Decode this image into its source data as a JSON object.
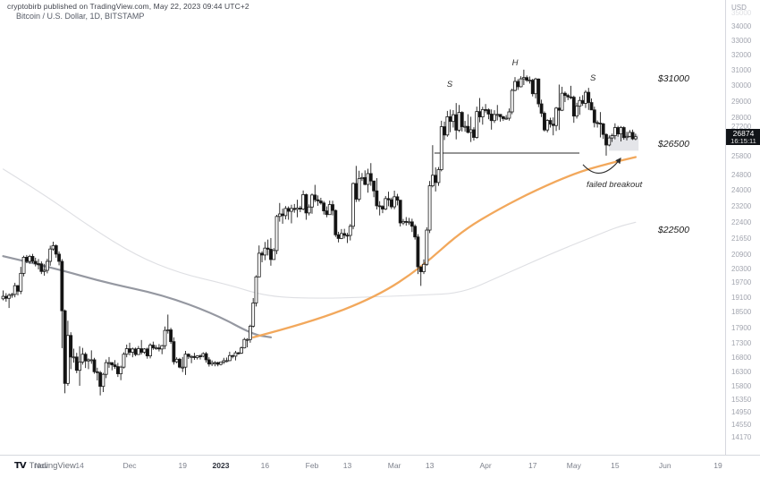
{
  "meta": {
    "publish_line": "cryptobirb published on TradingView.com, May 22, 2023 09:44 UTC+2",
    "title": "Bitcoin / U.S. Dollar, 1D, BITSTAMP",
    "brand": "TradingView",
    "brand_glyph": "TV"
  },
  "price_scale": {
    "unit": "USD",
    "price_box": {
      "price": "26874",
      "countdown": "16:15:11"
    }
  },
  "colors": {
    "up": "#ffffff",
    "down": "#131313",
    "bar_outline": "#1c1c1c",
    "ma_fast": "#f2a85c",
    "ma_slow": "#9598a1",
    "ma_faint": "#dedfe3",
    "annotation": "#2e2e2e",
    "highlight": "#d2d4da",
    "neckline": "#2b2b2b"
  },
  "chart_data": {
    "type": "candlestick",
    "symbol": "Bitcoin / U.S. Dollar",
    "interval": "1D",
    "exchange": "BITSTAMP",
    "unit": "USD (thousands)",
    "scale": "log",
    "start_date": "2022-10-19",
    "end_date": "2023-05-22",
    "last_close": 26.87,
    "y_ticks": [
      {
        "v": 35000,
        "dim": true
      },
      {
        "v": 34000
      },
      {
        "v": 33000
      },
      {
        "v": 32000
      },
      {
        "v": 31000
      },
      {
        "v": 30000
      },
      {
        "v": 29000
      },
      {
        "v": 28000
      },
      {
        "v": 27200,
        "dy": -5
      },
      {
        "v": 25800
      },
      {
        "v": 24800
      },
      {
        "v": 24000
      },
      {
        "v": 23200
      },
      {
        "v": 22400
      },
      {
        "v": 21650
      },
      {
        "v": 20900
      },
      {
        "v": 20300
      },
      {
        "v": 19700
      },
      {
        "v": 19100
      },
      {
        "v": 18500
      },
      {
        "v": 17900
      },
      {
        "v": 17300
      },
      {
        "v": 16800
      },
      {
        "v": 16300
      },
      {
        "v": 15800
      },
      {
        "v": 15350
      },
      {
        "v": 14950
      },
      {
        "v": 14550
      },
      {
        "v": 14170
      }
    ],
    "x_ticks": [
      {
        "t": "Nov",
        "d": -61
      },
      {
        "t": "14",
        "d": -48
      },
      {
        "t": "Dec",
        "d": -31
      },
      {
        "t": "19",
        "d": -13
      },
      {
        "t": "2023",
        "d": 0,
        "bold": true
      },
      {
        "t": "16",
        "d": 15
      },
      {
        "t": "Feb",
        "d": 31
      },
      {
        "t": "13",
        "d": 43
      },
      {
        "t": "Mar",
        "d": 59
      },
      {
        "t": "13",
        "d": 71
      },
      {
        "t": "Apr",
        "d": 90
      },
      {
        "t": "17",
        "d": 106
      },
      {
        "t": "May",
        "d": 120
      },
      {
        "t": "15",
        "d": 134
      },
      {
        "t": "Jun",
        "d": 151
      },
      {
        "t": "19",
        "d": 169
      }
    ],
    "candles": [
      [
        19.36,
        18.96,
        19.12
      ],
      [
        19.25,
        18.9,
        19.04
      ],
      [
        19.24,
        18.65,
        19.16
      ],
      [
        19.26,
        19.06,
        19.2
      ],
      [
        19.68,
        19.08,
        19.56
      ],
      [
        19.59,
        19.16,
        19.33
      ],
      [
        20.36,
        19.21,
        20.08
      ],
      [
        20.85,
        19.95,
        20.78
      ],
      [
        20.88,
        20.52,
        20.6
      ],
      [
        20.89,
        20.49,
        20.82
      ],
      [
        20.93,
        20.52,
        20.6
      ],
      [
        20.76,
        20.38,
        20.5
      ],
      [
        20.7,
        20.25,
        20.49
      ],
      [
        20.6,
        20.05,
        20.16
      ],
      [
        20.49,
        19.98,
        20.21
      ],
      [
        20.72,
        20.08,
        20.6
      ],
      [
        21.3,
        20.41,
        21.15
      ],
      [
        21.48,
        21.07,
        21.3
      ],
      [
        21.36,
        20.76,
        20.92
      ],
      [
        21.04,
        20.43,
        20.6
      ],
      [
        20.7,
        17.12,
        18.54
      ],
      [
        18.59,
        15.55,
        15.88
      ],
      [
        18.15,
        15.8,
        17.59
      ],
      [
        17.71,
        16.37,
        16.8
      ],
      [
        17.1,
        16.6,
        16.8
      ],
      [
        16.95,
        16.23,
        16.33
      ],
      [
        17.19,
        15.8,
        16.62
      ],
      [
        17.13,
        16.53,
        16.9
      ],
      [
        16.97,
        16.41,
        16.66
      ],
      [
        16.75,
        16.37,
        16.7
      ],
      [
        17.04,
        16.56,
        16.7
      ],
      [
        16.77,
        16.21,
        16.28
      ],
      [
        16.42,
        15.98,
        16.25
      ],
      [
        16.31,
        15.48,
        15.78
      ],
      [
        16.24,
        15.59,
        16.19
      ],
      [
        16.71,
        16.06,
        16.6
      ],
      [
        16.8,
        16.42,
        16.6
      ],
      [
        16.61,
        16.33,
        16.52
      ],
      [
        16.69,
        16.38,
        16.46
      ],
      [
        16.59,
        16.1,
        16.21
      ],
      [
        16.49,
        15.99,
        16.44
      ],
      [
        16.97,
        16.39,
        16.9
      ],
      [
        17.25,
        16.79,
        17.1
      ],
      [
        17.32,
        16.86,
        16.97
      ],
      [
        17.14,
        16.79,
        17.09
      ],
      [
        17.14,
        16.83,
        16.89
      ],
      [
        17.2,
        16.88,
        17.1
      ],
      [
        17.42,
        16.89,
        16.97
      ],
      [
        17.12,
        16.91,
        17.09
      ],
      [
        17.14,
        16.74,
        16.84
      ],
      [
        17.3,
        16.75,
        17.23
      ],
      [
        17.36,
        17.06,
        17.13
      ],
      [
        17.23,
        17.06,
        17.13
      ],
      [
        17.27,
        17.0,
        17.09
      ],
      [
        17.24,
        16.9,
        17.21
      ],
      [
        17.93,
        17.08,
        17.78
      ],
      [
        18.39,
        17.66,
        17.8
      ],
      [
        17.88,
        17.28,
        17.36
      ],
      [
        17.52,
        16.53,
        16.63
      ],
      [
        16.79,
        16.58,
        16.72
      ],
      [
        16.77,
        16.4,
        16.44
      ],
      [
        16.8,
        16.27,
        16.44
      ],
      [
        17.02,
        16.17,
        16.9
      ],
      [
        16.93,
        16.73,
        16.82
      ],
      [
        16.86,
        16.58,
        16.82
      ],
      [
        16.95,
        16.7,
        16.78
      ],
      [
        16.86,
        16.71,
        16.84
      ],
      [
        16.89,
        16.71,
        16.83
      ],
      [
        16.97,
        16.79,
        16.92
      ],
      [
        16.98,
        16.6,
        16.7
      ],
      [
        16.79,
        16.46,
        16.55
      ],
      [
        16.68,
        16.48,
        16.6
      ],
      [
        16.65,
        16.47,
        16.6
      ],
      [
        16.63,
        16.47,
        16.54
      ],
      [
        16.63,
        16.5,
        16.62
      ],
      [
        16.77,
        16.55,
        16.67
      ],
      [
        16.78,
        16.61,
        16.67
      ],
      [
        16.99,
        16.65,
        16.85
      ],
      [
        16.88,
        16.75,
        16.83
      ],
      [
        17.02,
        16.68,
        16.95
      ],
      [
        16.98,
        16.89,
        16.94
      ],
      [
        17.18,
        16.91,
        17.13
      ],
      [
        17.5,
        17.11,
        17.44
      ],
      [
        17.49,
        17.15,
        17.44
      ],
      [
        18.0,
        17.32,
        17.94
      ],
      [
        19.05,
        17.89,
        18.85
      ],
      [
        20.0,
        18.71,
        19.93
      ],
      [
        21.31,
        19.91,
        20.96
      ],
      [
        21.05,
        20.56,
        20.88
      ],
      [
        21.47,
        20.65,
        21.19
      ],
      [
        21.58,
        20.86,
        21.14
      ],
      [
        21.65,
        20.41,
        20.68
      ],
      [
        21.19,
        20.68,
        21.08
      ],
      [
        22.75,
        20.92,
        22.67
      ],
      [
        23.33,
        22.42,
        22.79
      ],
      [
        23.05,
        22.32,
        22.71
      ],
      [
        23.18,
        22.53,
        23.06
      ],
      [
        23.16,
        22.51,
        22.92
      ],
      [
        23.24,
        22.34,
        23.06
      ],
      [
        23.28,
        22.85,
        23.01
      ],
      [
        23.49,
        22.63,
        23.08
      ],
      [
        23.19,
        22.88,
        23.03
      ],
      [
        23.96,
        22.97,
        23.75
      ],
      [
        23.8,
        22.51,
        22.84
      ],
      [
        23.26,
        22.72,
        23.13
      ],
      [
        23.81,
        22.8,
        23.73
      ],
      [
        24.25,
        23.37,
        23.49
      ],
      [
        23.71,
        23.19,
        23.43
      ],
      [
        23.59,
        23.25,
        23.33
      ],
      [
        23.43,
        22.76,
        22.94
      ],
      [
        23.16,
        22.63,
        22.76
      ],
      [
        23.45,
        22.75,
        23.25
      ],
      [
        23.44,
        22.72,
        22.96
      ],
      [
        23.01,
        21.7,
        21.8
      ],
      [
        21.94,
        21.45,
        21.63
      ],
      [
        22.07,
        21.6,
        21.86
      ],
      [
        22.08,
        21.63,
        21.78
      ],
      [
        21.89,
        21.42,
        21.77
      ],
      [
        22.31,
        21.54,
        22.2
      ],
      [
        24.37,
        22.06,
        24.32
      ],
      [
        25.25,
        23.38,
        23.52
      ],
      [
        24.99,
        23.4,
        24.57
      ],
      [
        24.87,
        24.45,
        24.63
      ],
      [
        25.01,
        24.23,
        24.27
      ],
      [
        25.1,
        23.85,
        24.84
      ],
      [
        25.4,
        24.2,
        24.45
      ],
      [
        24.46,
        23.62,
        23.94
      ],
      [
        24.6,
        23.01,
        23.19
      ],
      [
        23.42,
        22.72,
        23.16
      ],
      [
        23.22,
        22.83,
        23.03
      ],
      [
        23.68,
        22.98,
        23.55
      ],
      [
        23.9,
        23.17,
        23.49
      ],
      [
        23.6,
        23.03,
        23.14
      ],
      [
        23.95,
        23.02,
        23.64
      ],
      [
        23.79,
        23.21,
        23.47
      ],
      [
        23.48,
        22.19,
        22.36
      ],
      [
        22.55,
        22.26,
        22.43
      ],
      [
        22.64,
        22.23,
        22.41
      ],
      [
        22.6,
        22.26,
        22.41
      ],
      [
        22.56,
        21.93,
        22.2
      ],
      [
        22.29,
        21.58,
        21.7
      ],
      [
        21.83,
        20.05,
        20.36
      ],
      [
        20.37,
        19.55,
        20.15
      ],
      [
        20.69,
        20.05,
        20.47
      ],
      [
        22.15,
        20.4,
        22.02
      ],
      [
        24.45,
        21.88,
        24.2
      ],
      [
        26.39,
        24.12,
        24.75
      ],
      [
        25.17,
        23.91,
        24.37
      ],
      [
        25.19,
        24.2,
        25.05
      ],
      [
        27.8,
        24.96,
        27.45
      ],
      [
        27.75,
        26.68,
        26.97
      ],
      [
        28.39,
        26.87,
        28.04
      ],
      [
        28.47,
        27.13,
        27.76
      ],
      [
        28.44,
        27.4,
        28.16
      ],
      [
        28.87,
        26.72,
        27.25
      ],
      [
        28.75,
        27.14,
        28.3
      ],
      [
        28.37,
        27.17,
        27.45
      ],
      [
        27.79,
        27.16,
        27.47
      ],
      [
        28.19,
        27.06,
        27.12
      ],
      [
        28.04,
        26.57,
        27.27
      ],
      [
        27.42,
        26.65,
        26.83
      ],
      [
        28.65,
        26.76,
        28.35
      ],
      [
        29.18,
        27.71,
        28.03
      ],
      [
        28.64,
        27.57,
        28.47
      ],
      [
        28.81,
        28.29,
        28.46
      ],
      [
        28.54,
        27.89,
        28.2
      ],
      [
        28.48,
        27.28,
        27.81
      ],
      [
        28.43,
        27.67,
        28.17
      ],
      [
        28.75,
        27.82,
        28.18
      ],
      [
        28.19,
        27.75,
        28.04
      ],
      [
        28.1,
        27.79,
        27.93
      ],
      [
        28.14,
        27.86,
        27.95
      ],
      [
        28.54,
        27.81,
        28.33
      ],
      [
        29.77,
        28.19,
        29.66
      ],
      [
        30.51,
        29.6,
        30.23
      ],
      [
        30.38,
        29.69,
        29.89
      ],
      [
        30.57,
        29.85,
        30.4
      ],
      [
        31.0,
        30.0,
        30.48
      ],
      [
        30.62,
        30.2,
        30.31
      ],
      [
        30.55,
        30.09,
        30.31
      ],
      [
        30.4,
        29.28,
        29.45
      ],
      [
        30.47,
        29.16,
        30.39
      ],
      [
        30.42,
        28.62,
        28.82
      ],
      [
        29.08,
        28.02,
        28.25
      ],
      [
        28.36,
        27.17,
        27.26
      ],
      [
        27.89,
        27.12,
        27.82
      ],
      [
        27.98,
        27.4,
        27.6
      ],
      [
        28.0,
        26.95,
        27.52
      ],
      [
        28.63,
        27.2,
        28.56
      ],
      [
        30.03,
        27.26,
        28.43
      ],
      [
        29.89,
        28.38,
        29.48
      ],
      [
        29.59,
        28.93,
        29.34
      ],
      [
        29.45,
        29.05,
        29.25
      ],
      [
        29.95,
        29.11,
        29.23
      ],
      [
        29.33,
        27.68,
        28.08
      ],
      [
        28.89,
        27.93,
        28.68
      ],
      [
        29.27,
        28.15,
        29.03
      ],
      [
        29.36,
        28.7,
        28.85
      ],
      [
        29.67,
        28.57,
        29.54
      ],
      [
        29.82,
        28.45,
        28.9
      ],
      [
        29.15,
        28.44,
        28.45
      ],
      [
        28.65,
        27.41,
        27.69
      ],
      [
        27.82,
        27.4,
        27.66
      ],
      [
        28.32,
        26.83,
        27.62
      ],
      [
        27.67,
        26.74,
        27.0
      ],
      [
        27.06,
        25.81,
        26.4
      ],
      [
        26.94,
        26.33,
        26.8
      ],
      [
        27.05,
        26.57,
        26.93
      ],
      [
        27.65,
        26.72,
        27.4
      ],
      [
        27.5,
        26.87,
        27.03
      ],
      [
        27.49,
        26.6,
        27.4
      ],
      [
        27.47,
        26.7,
        26.82
      ],
      [
        27.15,
        26.66,
        26.89
      ],
      [
        27.26,
        26.83,
        27.12
      ],
      [
        27.28,
        26.68,
        26.75
      ],
      [
        27.05,
        26.67,
        26.87
      ]
    ],
    "overlays": [
      {
        "name": "ma-faint-line",
        "color_key": "ma_faint",
        "width": 1.1,
        "points": [
          [
            0,
            25.08
          ],
          [
            14,
            23.75
          ],
          [
            29,
            22.22
          ],
          [
            45,
            20.87
          ],
          [
            60,
            20.08
          ],
          [
            76,
            19.62
          ],
          [
            90,
            19.1
          ],
          [
            108,
            19.03
          ],
          [
            127,
            19.1
          ],
          [
            142,
            19.17
          ],
          [
            156,
            19.25
          ],
          [
            169,
            19.96
          ],
          [
            187,
            20.98
          ],
          [
            200,
            21.68
          ],
          [
            209,
            22.18
          ],
          [
            215,
            22.39
          ]
        ]
      },
      {
        "name": "ma-slow-gray-line",
        "color_key": "ma_slow",
        "width": 2.2,
        "points": [
          [
            0,
            20.83
          ],
          [
            17,
            20.32
          ],
          [
            35,
            19.68
          ],
          [
            54,
            19.19
          ],
          [
            72,
            18.41
          ],
          [
            85,
            17.62
          ],
          [
            91,
            17.52
          ]
        ]
      },
      {
        "name": "ma-fast-orange-line",
        "color_key": "ma_fast",
        "width": 2.3,
        "points": [
          [
            85,
            17.52
          ],
          [
            105,
            18.1
          ],
          [
            127,
            19.11
          ],
          [
            142,
            20.32
          ],
          [
            156,
            21.99
          ],
          [
            169,
            23.07
          ],
          [
            181,
            23.97
          ],
          [
            195,
            24.9
          ],
          [
            206,
            25.38
          ],
          [
            215,
            25.73
          ]
        ]
      }
    ],
    "annotations": {
      "labels": [
        {
          "text": "S",
          "day": 77.8,
          "price": 29.89
        },
        {
          "text": "H",
          "day": 100,
          "price": 31.29
        },
        {
          "text": "S",
          "day": 126.5,
          "price": 30.28
        }
      ],
      "price_notes": [
        {
          "text": "$31000",
          "day": 148.6,
          "price": 30.4
        },
        {
          "text": "$26500",
          "day": 148.6,
          "price": 26.45
        },
        {
          "text": "$22500",
          "day": 148.6,
          "price": 22.02
        }
      ],
      "caption": {
        "text": "failed breakout",
        "day": 124.3,
        "price": 24.13
      },
      "neckline": {
        "price": 25.95,
        "day_from": 72.6,
        "day_to": 121.9
      },
      "arrow": {
        "from": {
          "day": 123.1,
          "price": 25.32
        },
        "ctrl": {
          "day": 129.2,
          "price": 24.27
        },
        "to": {
          "day": 135.9,
          "price": 25.66
        }
      },
      "highlight": {
        "day_from": 131.9,
        "day_to": 142.0,
        "price_top": 26.99,
        "price_bottom": 26.08
      }
    }
  }
}
